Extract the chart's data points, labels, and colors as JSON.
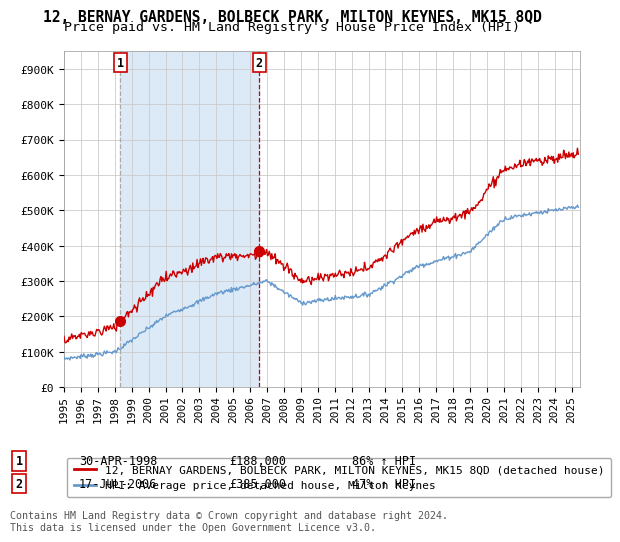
{
  "title": "12, BERNAY GARDENS, BOLBECK PARK, MILTON KEYNES, MK15 8QD",
  "subtitle": "Price paid vs. HM Land Registry's House Price Index (HPI)",
  "ylim": [
    0,
    950000
  ],
  "yticks": [
    0,
    100000,
    200000,
    300000,
    400000,
    500000,
    600000,
    700000,
    800000,
    900000
  ],
  "ytick_labels": [
    "£0",
    "£100K",
    "£200K",
    "£300K",
    "£400K",
    "£500K",
    "£600K",
    "£700K",
    "£800K",
    "£900K"
  ],
  "xlim_start": 1995.0,
  "xlim_end": 2025.5,
  "xticks": [
    1995,
    1996,
    1997,
    1998,
    1999,
    2000,
    2001,
    2002,
    2003,
    2004,
    2005,
    2006,
    2007,
    2008,
    2009,
    2010,
    2011,
    2012,
    2013,
    2014,
    2015,
    2016,
    2017,
    2018,
    2019,
    2020,
    2021,
    2022,
    2023,
    2024,
    2025
  ],
  "sale1_x": 1998.33,
  "sale1_y": 188000,
  "sale1_label": "1",
  "sale1_date": "30-APR-1998",
  "sale1_price": "£188,000",
  "sale1_hpi": "86% ↑ HPI",
  "sale2_x": 2006.54,
  "sale2_y": 385000,
  "sale2_label": "2",
  "sale2_date": "17-JUL-2006",
  "sale2_price": "£385,000",
  "sale2_hpi": "47% ↑ HPI",
  "red_color": "#cc0000",
  "blue_color": "#6699cc",
  "shade_color": "#dce9f7",
  "vline1_color": "#aaaaaa",
  "vline2_color": "#cc0000",
  "legend_label_red": "12, BERNAY GARDENS, BOLBECK PARK, MILTON KEYNES, MK15 8QD (detached house)",
  "legend_label_blue": "HPI: Average price, detached house, Milton Keynes",
  "footnote": "Contains HM Land Registry data © Crown copyright and database right 2024.\nThis data is licensed under the Open Government Licence v3.0.",
  "background_color": "#ffffff",
  "grid_color": "#cccccc",
  "title_fontsize": 10.5,
  "subtitle_fontsize": 9.5,
  "tick_fontsize": 8,
  "legend_fontsize": 8
}
